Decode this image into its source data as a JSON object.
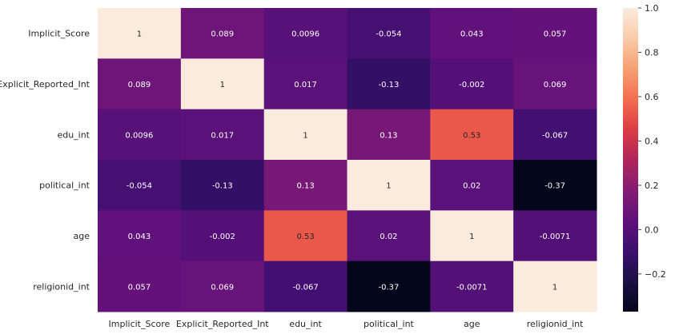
{
  "chart_data": {
    "type": "heatmap",
    "title": "",
    "xlabel": "",
    "ylabel": "",
    "x_categories": [
      "Implicit_Score",
      "Explicit_Reported_Int",
      "edu_int",
      "political_int",
      "age",
      "religionid_int"
    ],
    "y_categories": [
      "Implicit_Score",
      "Explicit_Reported_Int",
      "edu_int",
      "political_int",
      "age",
      "religionid_int"
    ],
    "values": [
      [
        1,
        0.089,
        0.0096,
        -0.054,
        0.043,
        0.057
      ],
      [
        0.089,
        1,
        0.017,
        -0.13,
        -0.002,
        0.069
      ],
      [
        0.0096,
        0.017,
        1,
        0.13,
        0.53,
        -0.067
      ],
      [
        -0.054,
        -0.13,
        0.13,
        1,
        0.02,
        -0.37
      ],
      [
        0.043,
        -0.002,
        0.53,
        0.02,
        1,
        -0.0071
      ],
      [
        0.057,
        0.069,
        -0.067,
        -0.37,
        -0.0071,
        1
      ]
    ],
    "cell_labels": [
      [
        "1",
        "0.089",
        "0.0096",
        "-0.054",
        "0.043",
        "0.057"
      ],
      [
        "0.089",
        "1",
        "0.017",
        "-0.13",
        "-0.002",
        "0.069"
      ],
      [
        "0.0096",
        "0.017",
        "1",
        "0.13",
        "0.53",
        "-0.067"
      ],
      [
        "-0.054",
        "-0.13",
        "0.13",
        "1",
        "0.02",
        "-0.37"
      ],
      [
        "0.043",
        "-0.002",
        "0.53",
        "0.02",
        "1",
        "-0.0071"
      ],
      [
        "0.057",
        "0.069",
        "-0.067",
        "-0.37",
        "-0.0071",
        "1"
      ]
    ],
    "colorbar": {
      "range": [
        -0.37,
        1
      ],
      "ticks": [
        1.0,
        0.8,
        0.6,
        0.4,
        0.2,
        0.0,
        -0.2
      ],
      "tick_labels": [
        "1.0",
        "0.8",
        "0.6",
        "0.4",
        "0.2",
        "0.0",
        "−0.2"
      ],
      "colormap": "rocket"
    },
    "grid": false
  }
}
